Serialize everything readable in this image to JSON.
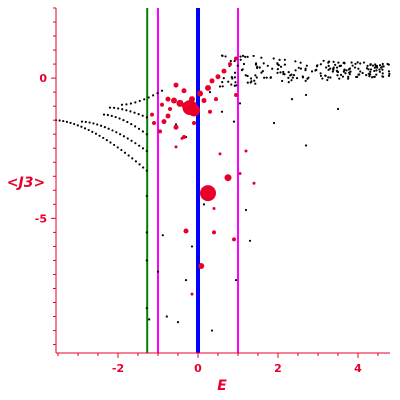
{
  "chart_data": {
    "type": "scatter",
    "xlabel": "E",
    "ylabel": "<J3>",
    "xlim": [
      -3.55,
      4.8
    ],
    "ylim": [
      -9.8,
      2.5
    ],
    "x_ticks": [
      -2,
      0,
      2,
      4
    ],
    "y_ticks": [
      0,
      -5
    ],
    "colors": {
      "axis": "#e8002a",
      "black_points": "#000000",
      "red_points": "#e8002a",
      "line_green": "#008000",
      "line_magenta": "#ff00ff",
      "line_blue": "#0000ff"
    },
    "vertical_lines": [
      {
        "x": -1.27,
        "color": "#008000",
        "weight": "thin"
      },
      {
        "x": -1.0,
        "color": "#ff00ff",
        "weight": "thin"
      },
      {
        "x": 0.0,
        "color": "#0000ff",
        "weight": "thick"
      },
      {
        "x": 1.0,
        "color": "#ff00ff",
        "weight": "thin"
      }
    ],
    "black_curves": [
      {
        "x_start": -3.55,
        "x_end": -1.28,
        "y_start": -1.5,
        "y_end": -3.3,
        "n": 26
      },
      {
        "x_start": -2.9,
        "x_end": -1.28,
        "y_start": -1.55,
        "y_end": -2.6,
        "n": 18
      },
      {
        "x_start": -2.35,
        "x_end": -1.28,
        "y_start": -1.3,
        "y_end": -2.0,
        "n": 12
      },
      {
        "x_start": -2.2,
        "x_end": -1.28,
        "y_start": -1.05,
        "y_end": -1.4,
        "n": 10
      },
      {
        "x_start": -1.9,
        "x_end": -0.9,
        "y_start": -0.95,
        "y_end": -0.45,
        "n": 10
      }
    ],
    "black_band": {
      "x_start": 0.6,
      "x_end": 4.8,
      "upper_start": 0.9,
      "upper_end": 0.5,
      "lower_start": -0.3,
      "lower_end": 0.05,
      "n": 200
    },
    "black_scatter": [
      [
        -1.28,
        -4.2
      ],
      [
        -1.28,
        -5.5
      ],
      [
        -1.28,
        -6.5
      ],
      [
        -1.28,
        -8.2
      ],
      [
        -1.22,
        -8.6
      ],
      [
        -1.0,
        -6.9
      ],
      [
        -0.88,
        -5.6
      ],
      [
        -0.78,
        -8.5
      ],
      [
        -0.5,
        -8.7
      ],
      [
        -0.3,
        -7.2
      ],
      [
        -0.15,
        -6.0
      ],
      [
        0.15,
        -4.5
      ],
      [
        0.35,
        -9.0
      ],
      [
        1.3,
        -5.8
      ],
      [
        1.2,
        -4.7
      ],
      [
        0.95,
        -7.2
      ],
      [
        2.7,
        -2.4
      ],
      [
        3.5,
        -1.1
      ],
      [
        1.9,
        -1.6
      ],
      [
        0.9,
        -1.55
      ],
      [
        1.05,
        -0.9
      ],
      [
        2.35,
        -0.75
      ],
      [
        2.7,
        -0.6
      ],
      [
        0.3,
        -0.5
      ],
      [
        0.55,
        -0.3
      ],
      [
        -0.55,
        -1.65
      ],
      [
        -0.3,
        -2.1
      ],
      [
        0.6,
        -1.2
      ]
    ],
    "red_points": [
      [
        -0.2,
        -1.05,
        7.5
      ],
      [
        -0.1,
        -1.15,
        6
      ],
      [
        -0.3,
        -1.0,
        4
      ],
      [
        -0.45,
        -0.9,
        3.5
      ],
      [
        -0.6,
        -0.8,
        3
      ],
      [
        -0.75,
        -0.75,
        2.5
      ],
      [
        -0.15,
        -0.75,
        3
      ],
      [
        0.05,
        -0.55,
        3
      ],
      [
        0.25,
        -0.35,
        3
      ],
      [
        0.35,
        -0.1,
        2.5
      ],
      [
        0.5,
        0.05,
        2.5
      ],
      [
        0.65,
        0.25,
        2.5
      ],
      [
        0.8,
        0.5,
        2
      ],
      [
        0.95,
        0.7,
        2
      ],
      [
        -0.55,
        -0.25,
        2.5
      ],
      [
        -0.35,
        -0.45,
        2.5
      ],
      [
        0.15,
        -0.8,
        2.5
      ],
      [
        -0.75,
        -1.35,
        2.5
      ],
      [
        -0.85,
        -1.55,
        2.5
      ],
      [
        -0.55,
        -1.75,
        2.5
      ],
      [
        -0.35,
        -2.1,
        2
      ],
      [
        -0.95,
        -1.9,
        2
      ],
      [
        -1.1,
        -1.6,
        2
      ],
      [
        -1.15,
        -1.3,
        2
      ],
      [
        0.25,
        -4.1,
        8
      ],
      [
        0.75,
        -3.55,
        3.5
      ],
      [
        0.08,
        -6.7,
        3
      ],
      [
        -0.3,
        -5.45,
        2.5
      ],
      [
        0.4,
        -5.5,
        2
      ],
      [
        0.9,
        -5.75,
        2
      ],
      [
        1.05,
        -3.4,
        1.5
      ],
      [
        -0.15,
        -7.7,
        1.5
      ],
      [
        1.4,
        -3.75,
        1.5
      ],
      [
        1.2,
        -2.6,
        1.5
      ],
      [
        0.4,
        -4.65,
        1.5
      ],
      [
        -0.4,
        -2.15,
        1.5
      ],
      [
        0.95,
        -0.6,
        2
      ],
      [
        -0.55,
        -2.45,
        1.5
      ],
      [
        0.55,
        -2.7,
        1.5
      ],
      [
        -0.1,
        -1.6,
        2
      ],
      [
        0.3,
        -1.2,
        2
      ],
      [
        -0.7,
        -1.1,
        2
      ],
      [
        0.45,
        -0.75,
        2
      ],
      [
        -0.9,
        -0.95,
        2
      ]
    ]
  }
}
